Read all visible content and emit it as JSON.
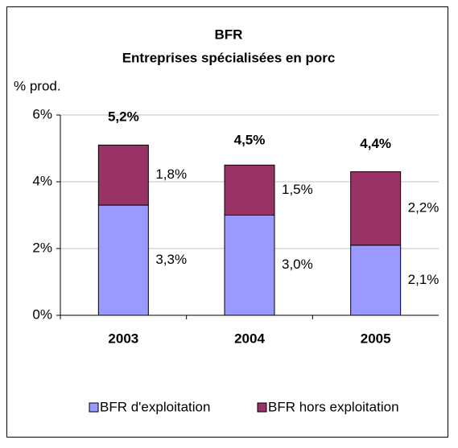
{
  "chart_data": {
    "type": "stacked_bar",
    "title": "BFR",
    "subtitle": "Entreprises spécialisées en porc",
    "y_label": "% prod.",
    "categories": [
      "2003",
      "2004",
      "2005"
    ],
    "series": [
      {
        "name": "BFR d'exploitation",
        "color": "#9999ff",
        "values": [
          3.3,
          3.0,
          2.1
        ],
        "value_labels": [
          "3,3%",
          "3,0%",
          "2,1%"
        ]
      },
      {
        "name": "BFR hors exploitation",
        "color": "#993366",
        "values": [
          1.8,
          1.5,
          2.2
        ],
        "value_labels": [
          "1,8%",
          "1,5%",
          "2,2%"
        ]
      }
    ],
    "totals": [
      5.2,
      4.5,
      4.4
    ],
    "total_labels": [
      "5,2%",
      "4,5%",
      "4,4%"
    ],
    "ylim": [
      0,
      6
    ],
    "yticks": [
      {
        "value": 0,
        "label": "0%"
      },
      {
        "value": 2,
        "label": "2%"
      },
      {
        "value": 4,
        "label": "4%"
      },
      {
        "value": 6,
        "label": "6%"
      }
    ],
    "grid": true,
    "legend": "bottom"
  }
}
